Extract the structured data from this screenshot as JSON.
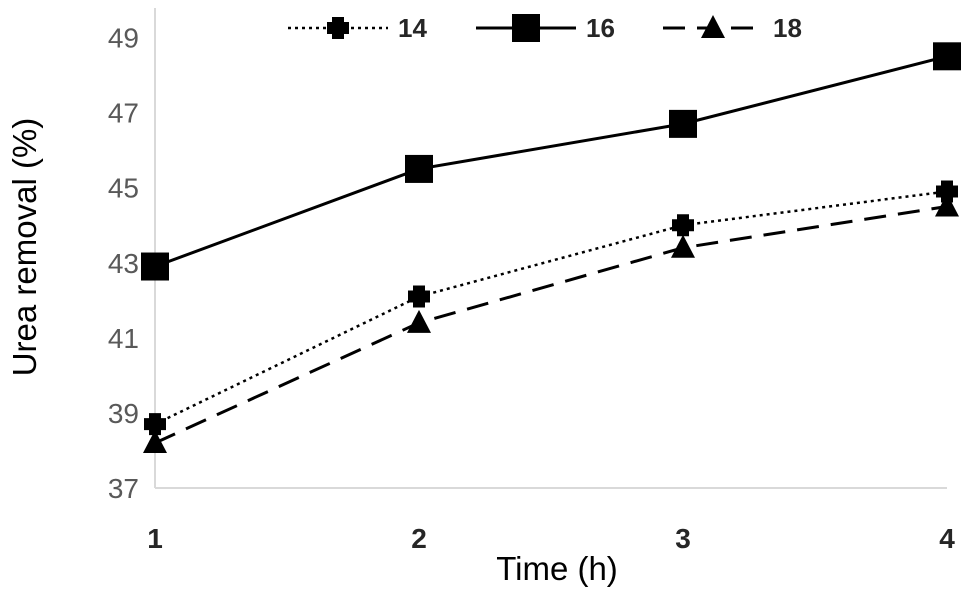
{
  "chart_data": {
    "type": "line",
    "x": [
      1,
      2,
      3,
      4
    ],
    "x_tick_labels": [
      "1",
      "2",
      "3",
      "4"
    ],
    "xlabel": "Time (h)",
    "ylabel": "Urea removal (%)",
    "ylim": [
      37,
      50
    ],
    "y_ticks": [
      37,
      39,
      41,
      43,
      45,
      47,
      49
    ],
    "grid": false,
    "legend_position": "top",
    "series": [
      {
        "name": "14",
        "values": [
          38.7,
          42.1,
          44.0,
          44.9
        ],
        "line_style": "dotted",
        "marker": "plus",
        "color": "#000000"
      },
      {
        "name": "16",
        "values": [
          42.9,
          45.5,
          46.7,
          48.5
        ],
        "line_style": "solid",
        "marker": "square",
        "color": "#000000"
      },
      {
        "name": "18",
        "values": [
          38.2,
          41.4,
          43.4,
          44.5
        ],
        "line_style": "dashed",
        "marker": "triangle",
        "color": "#000000"
      }
    ]
  }
}
